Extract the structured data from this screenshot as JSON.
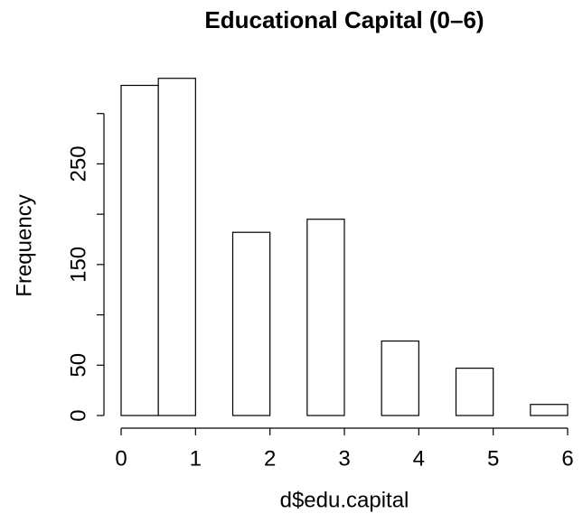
{
  "chart_data": {
    "type": "histogram",
    "title": "Educational Capital (0–6)",
    "x_label": "d$edu.capital",
    "y_label": "Frequency",
    "bins": [
      0,
      0.5,
      1,
      1.5,
      2,
      2.5,
      3,
      3.5,
      4,
      4.5,
      5,
      5.5,
      6
    ],
    "values": [
      328,
      335,
      0,
      182,
      0,
      195,
      0,
      74,
      0,
      47,
      0,
      11
    ],
    "color": "#ffffff",
    "edge_color": "#000000",
    "xlim": [
      0,
      6
    ],
    "xticks": [
      0,
      1,
      2,
      3,
      4,
      5,
      6
    ],
    "ylim": [
      0,
      350
    ],
    "yticks": [
      0,
      50,
      {
        "value": 100,
        "label": null
      },
      150,
      {
        "value": 200,
        "label": null
      },
      250,
      {
        "value": 300,
        "label": null
      }
    ],
    "grid": false
  }
}
